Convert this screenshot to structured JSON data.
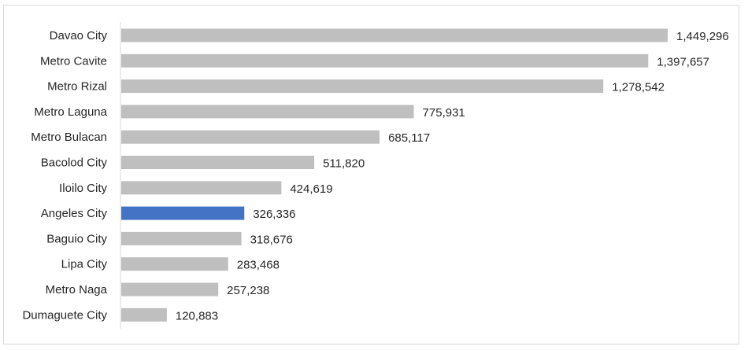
{
  "chart_data": {
    "type": "bar",
    "orientation": "horizontal",
    "categories": [
      "Davao City",
      "Metro Cavite",
      "Metro Rizal",
      "Metro Laguna",
      "Metro Bulacan",
      "Bacolod City",
      "Iloilo City",
      "Angeles City",
      "Baguio City",
      "Lipa City",
      "Metro Naga",
      "Dumaguete City"
    ],
    "values": [
      1449296,
      1397657,
      1278542,
      775931,
      685117,
      511820,
      424619,
      326336,
      318676,
      283468,
      257238,
      120883
    ],
    "value_labels": [
      "1,449,296",
      "1,397,657",
      "1,278,542",
      "775,931",
      "685,117",
      "511,820",
      "424,619",
      "326,336",
      "318,676",
      "283,468",
      "257,238",
      "120,883"
    ],
    "highlight": "Angeles City",
    "colors": {
      "bar": "#bfbfbf",
      "highlight": "#4472c4",
      "axis": "#d9d9d9",
      "text": "#262626"
    },
    "xlim": [
      0,
      1449296
    ],
    "grid": false,
    "legend": "none"
  }
}
